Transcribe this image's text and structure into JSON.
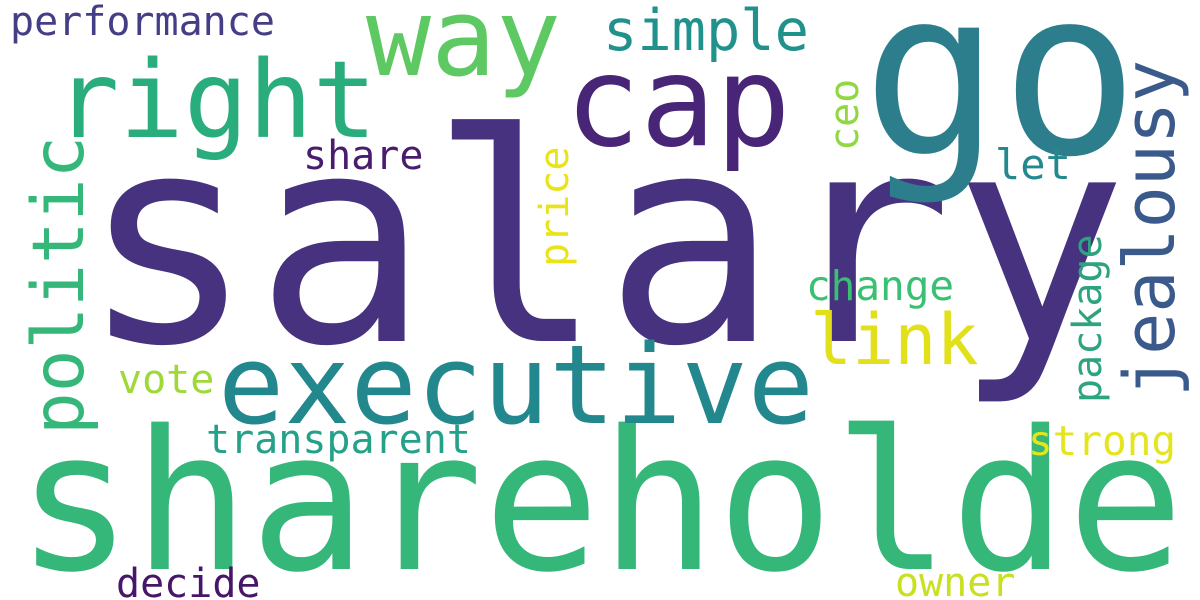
{
  "words": [
    {
      "text": "salary",
      "color": "#46327e"
    },
    {
      "text": "shareholder",
      "color": "#35b779"
    },
    {
      "text": "go",
      "color": "#2c7e8d"
    },
    {
      "text": "executive",
      "color": "#23888e"
    },
    {
      "text": "cap",
      "color": "#482576"
    },
    {
      "text": "right",
      "color": "#2aad7c"
    },
    {
      "text": "way",
      "color": "#5ec962"
    },
    {
      "text": "jealousy",
      "color": "#3b5a8c"
    },
    {
      "text": "politic",
      "color": "#35b779"
    },
    {
      "text": "simple",
      "color": "#21918c"
    },
    {
      "text": "link",
      "color": "#e1e01a"
    },
    {
      "text": "performance",
      "color": "#433e85"
    },
    {
      "text": "transparent",
      "color": "#25a18a"
    },
    {
      "text": "change",
      "color": "#3ac072"
    },
    {
      "text": "strong",
      "color": "#e4e51c"
    },
    {
      "text": "owner",
      "color": "#c8e020"
    },
    {
      "text": "decide",
      "color": "#471669"
    },
    {
      "text": "package",
      "color": "#2ea37f"
    },
    {
      "text": "price",
      "color": "#e9e31a"
    },
    {
      "text": "share",
      "color": "#4a1c6e"
    },
    {
      "text": "vote",
      "color": "#9fd938"
    },
    {
      "text": "let",
      "color": "#23898e"
    },
    {
      "text": "ceo",
      "color": "#90d743"
    }
  ]
}
